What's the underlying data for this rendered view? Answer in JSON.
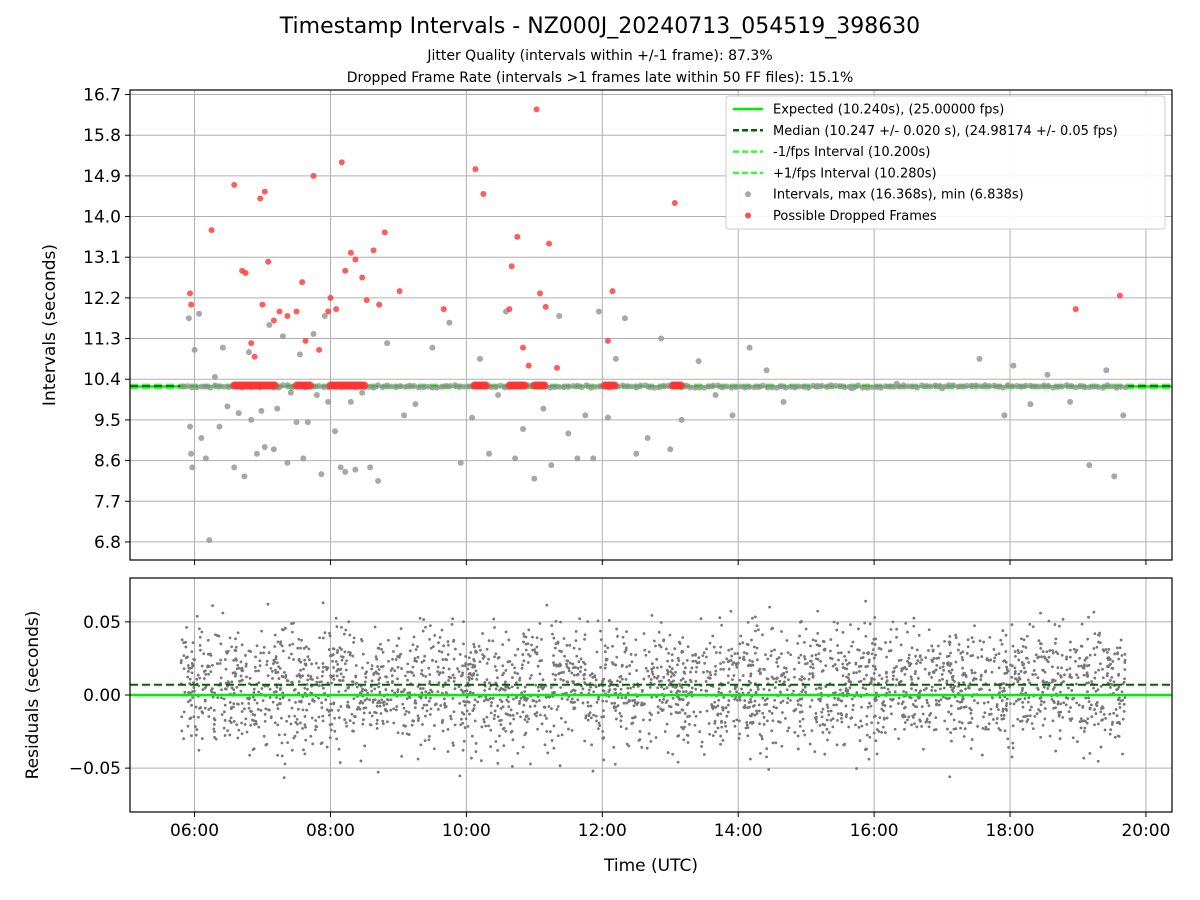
{
  "title": "Timestamp Intervals - NZ000J_20240713_054519_398630",
  "subtitle_1": "Jitter Quality (intervals within +/-1 frame): 87.3%",
  "subtitle_2": "Dropped Frame Rate (intervals >1 frames late within 50 FF files): 15.1%",
  "colors": {
    "expected": "#00ee00",
    "median": "#006400",
    "fps_interval": "#33ff33",
    "intervals": "#999999",
    "dropped": "#ff3333",
    "residuals": "#777777",
    "grid": "#b0b0b0"
  },
  "chart_data": [
    {
      "type": "scatter",
      "ylabel": "Intervals (seconds)",
      "xlabel": "",
      "xlim": [
        "05:03",
        "20:23"
      ],
      "ylim": [
        6.4,
        16.8
      ],
      "yticks": [
        6.8,
        7.7,
        8.6,
        9.5,
        10.4,
        11.3,
        12.2,
        13.1,
        14.0,
        14.9,
        15.8,
        16.7
      ],
      "grid": true,
      "legend_position": "top-right",
      "reference_lines": [
        {
          "name": "Expected (10.240s), (25.00000 fps)",
          "y": 10.24,
          "style": "solid"
        },
        {
          "name": "Median (10.247 +/- 0.020 s), (24.98174 +/- 0.05 fps)",
          "y": 10.247,
          "style": "dashed"
        },
        {
          "name": "-1/fps Interval (10.200s)",
          "y": 10.2,
          "style": "dashed"
        },
        {
          "name": "+1/fps Interval (10.280s)",
          "y": 10.28,
          "style": "dashed"
        }
      ],
      "series": [
        {
          "name": "Intervals, max (16.368s), min (6.838s)",
          "x": [
            "05:55",
            "05:56",
            "05:57",
            "05:58",
            "06:00",
            "06:04",
            "06:06",
            "06:10",
            "06:13",
            "06:18",
            "06:22",
            "06:25",
            "06:29",
            "06:35",
            "06:39",
            "06:44",
            "06:48",
            "06:50",
            "06:55",
            "06:59",
            "07:02",
            "07:06",
            "07:10",
            "07:13",
            "07:18",
            "07:22",
            "07:25",
            "07:30",
            "07:33",
            "07:36",
            "07:40",
            "07:45",
            "07:48",
            "07:52",
            "07:55",
            "07:58",
            "08:04",
            "08:09",
            "08:13",
            "08:18",
            "08:22",
            "08:28",
            "08:35",
            "08:42",
            "08:50",
            "09:05",
            "09:15",
            "09:30",
            "09:45",
            "09:55",
            "10:05",
            "10:12",
            "10:20",
            "10:28",
            "10:35",
            "10:43",
            "10:50",
            "11:00",
            "11:08",
            "11:15",
            "11:22",
            "11:30",
            "11:38",
            "11:45",
            "11:52",
            "11:57",
            "12:05",
            "12:12",
            "12:20",
            "12:30",
            "12:40",
            "12:52",
            "13:00",
            "13:10",
            "13:25",
            "13:40",
            "13:55",
            "14:10",
            "14:25",
            "14:40",
            "15:10",
            "15:40",
            "16:20",
            "17:00",
            "17:33",
            "17:55",
            "18:03",
            "18:18",
            "18:33",
            "18:53",
            "19:10",
            "19:25",
            "19:32",
            "19:40"
          ],
          "y": [
            11.75,
            9.35,
            8.75,
            8.45,
            11.05,
            11.85,
            9.1,
            8.65,
            6.84,
            10.45,
            9.35,
            11.1,
            9.8,
            8.45,
            9.65,
            8.25,
            11.0,
            9.5,
            8.75,
            9.7,
            8.9,
            11.6,
            8.85,
            9.75,
            11.35,
            8.55,
            10.1,
            9.45,
            10.95,
            8.65,
            9.45,
            11.4,
            10.05,
            8.3,
            11.8,
            9.9,
            9.25,
            8.45,
            8.35,
            9.9,
            8.4,
            10.1,
            8.45,
            8.15,
            11.2,
            9.6,
            9.85,
            11.1,
            11.65,
            8.55,
            9.55,
            10.85,
            8.75,
            10.05,
            11.9,
            8.65,
            9.3,
            8.2,
            9.75,
            8.5,
            11.8,
            9.2,
            8.65,
            9.6,
            8.65,
            11.9,
            9.55,
            10.85,
            11.75,
            8.75,
            9.1,
            11.3,
            8.85,
            9.5,
            10.8,
            10.05,
            9.6,
            11.1,
            10.6,
            9.9,
            10.25,
            10.2,
            10.3,
            10.2,
            10.85,
            9.6,
            10.7,
            9.85,
            10.5,
            9.9,
            8.5,
            10.6,
            8.25,
            9.6
          ]
        },
        {
          "name": "Possible Dropped Frames",
          "x": [
            "05:56",
            "05:57",
            "06:15",
            "06:35",
            "06:42",
            "06:45",
            "06:50",
            "06:53",
            "06:58",
            "07:00",
            "07:02",
            "07:05",
            "07:10",
            "07:15",
            "07:22",
            "07:30",
            "07:35",
            "07:38",
            "07:45",
            "07:50",
            "07:58",
            "08:00",
            "08:05",
            "08:10",
            "08:13",
            "08:18",
            "08:22",
            "08:28",
            "08:32",
            "08:38",
            "08:43",
            "08:48",
            "09:01",
            "09:40",
            "10:08",
            "10:15",
            "10:38",
            "10:40",
            "10:45",
            "10:50",
            "10:55",
            "11:02",
            "11:05",
            "11:10",
            "11:13",
            "11:20",
            "12:05",
            "12:09",
            "13:04",
            "18:58",
            "19:37"
          ],
          "y": [
            12.3,
            12.05,
            13.7,
            14.7,
            12.8,
            12.75,
            11.2,
            10.9,
            14.4,
            12.05,
            14.55,
            13.0,
            11.7,
            11.9,
            11.8,
            11.9,
            12.55,
            11.25,
            14.9,
            11.05,
            11.9,
            12.2,
            11.95,
            15.2,
            12.8,
            13.2,
            13.05,
            12.65,
            12.15,
            13.25,
            12.05,
            13.65,
            12.35,
            11.95,
            15.05,
            14.5,
            11.95,
            12.9,
            13.55,
            11.1,
            10.7,
            16.37,
            12.3,
            12.0,
            13.4,
            10.65,
            11.25,
            12.35,
            14.3,
            11.95,
            12.25
          ]
        }
      ]
    },
    {
      "type": "scatter",
      "ylabel": "Residuals (seconds)",
      "xlabel": "Time (UTC)",
      "xlim": [
        "05:03",
        "20:23"
      ],
      "ylim": [
        -0.08,
        0.08
      ],
      "yticks": [
        -0.05,
        0.0,
        0.05
      ],
      "yticklabels": [
        "−0.05",
        "0.00",
        "0.05"
      ],
      "xticks": [
        "06:00",
        "08:00",
        "10:00",
        "12:00",
        "14:00",
        "16:00",
        "18:00",
        "20:00"
      ],
      "grid": true,
      "reference_lines": [
        {
          "name": "Expected",
          "y": 0.0,
          "style": "solid"
        },
        {
          "name": "Median",
          "y": 0.007,
          "style": "dashed"
        }
      ],
      "series": [
        {
          "name": "Residuals",
          "x_range": [
            "05:48",
            "19:42"
          ],
          "mean": 0.006,
          "spread": 0.022,
          "count": 3000
        }
      ]
    }
  ]
}
